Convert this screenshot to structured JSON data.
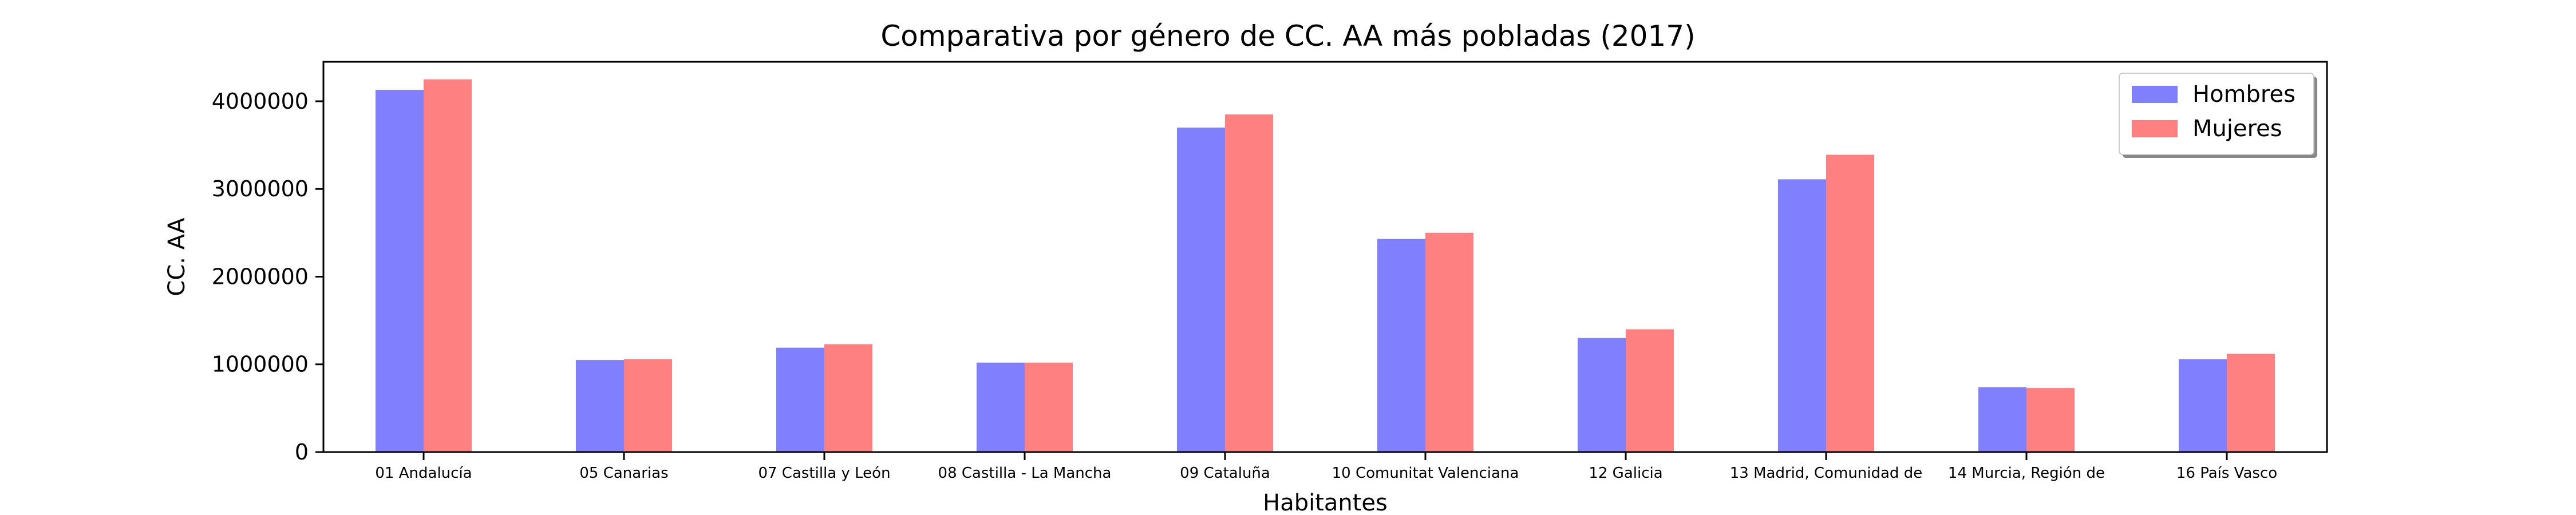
{
  "chart_data": {
    "type": "bar",
    "title": "Comparativa por género de CC. AA más pobladas (2017)",
    "xlabel": "Habitantes",
    "ylabel": "CC. AA",
    "ylim": [
      0,
      4450000
    ],
    "yticks": [
      0,
      1000000,
      2000000,
      3000000,
      4000000
    ],
    "ytick_labels": [
      "0",
      "1000000",
      "2000000",
      "3000000",
      "4000000"
    ],
    "legend_position": "top-right",
    "grid": false,
    "categories": [
      "01 Andalucía",
      "05 Canarias",
      "07 Castilla y León",
      "08 Castilla - La Mancha",
      "09 Cataluña",
      "10 Comunitat Valenciana",
      "12 Galicia",
      "13 Madrid, Comunidad de",
      "14 Murcia, Región de",
      "16 País Vasco"
    ],
    "series": [
      {
        "name": "Hombres",
        "color": "#8080ff",
        "values": [
          4130000,
          1050000,
          1190000,
          1020000,
          3700000,
          2430000,
          1300000,
          3110000,
          740000,
          1060000
        ]
      },
      {
        "name": "Mujeres",
        "color": "#ff8080",
        "values": [
          4250000,
          1060000,
          1230000,
          1020000,
          3850000,
          2500000,
          1400000,
          3390000,
          730000,
          1120000
        ]
      }
    ]
  }
}
